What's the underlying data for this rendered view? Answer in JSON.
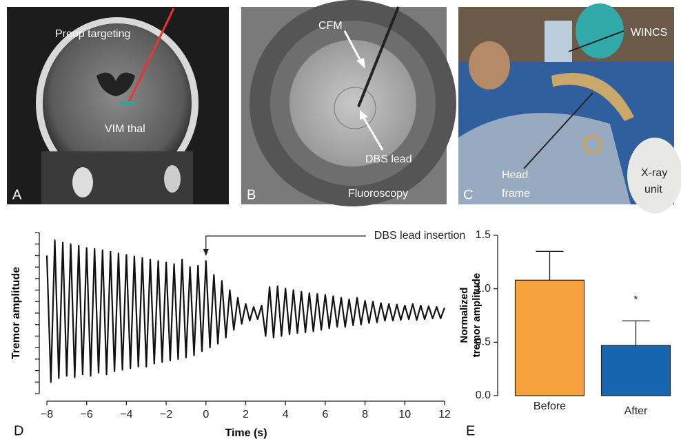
{
  "images": [
    {
      "letter": "A",
      "labels": [
        "Preop targeting",
        "VIM thal"
      ]
    },
    {
      "letter": "B",
      "labels": [
        "CFM",
        "DBS lead",
        "Fluoroscopy"
      ]
    },
    {
      "letter": "C",
      "labels": [
        "WINCS",
        "Head",
        "frame",
        "X-ray",
        "unit"
      ]
    }
  ],
  "chart_data": [
    {
      "type": "line",
      "panel_label": "D",
      "xlabel": "Time (s)",
      "ylabel": "Tremor amplitude",
      "color": "#111111",
      "annotation": {
        "text": "DBS lead insertion",
        "x": 0
      },
      "xlim": [
        -8,
        12
      ],
      "ylim": [
        -1.05,
        1.05
      ],
      "xticks": [
        {
          "value": -8,
          "label": "−8"
        },
        {
          "value": -6,
          "label": "−6"
        },
        {
          "value": -4,
          "label": "−4"
        },
        {
          "value": -2,
          "label": "−2"
        },
        0,
        2,
        4,
        6,
        8,
        10,
        12
      ],
      "yticks": [
        -1.05,
        -0.9,
        -0.75,
        -0.6,
        -0.45,
        -0.3,
        -0.15,
        0,
        0.15,
        0.3,
        0.45,
        0.6,
        0.75,
        0.9,
        1.05
      ],
      "x": [
        -8,
        -7.8,
        -7.6,
        -7.4,
        -7.2,
        -7,
        -6.8,
        -6.6,
        -6.4,
        -6.2,
        -6,
        -5.8,
        -5.6,
        -5.4,
        -5.2,
        -5,
        -4.8,
        -4.6,
        -4.4,
        -4.2,
        -4,
        -3.8,
        -3.6,
        -3.4,
        -3.2,
        -3,
        -2.8,
        -2.6,
        -2.4,
        -2.2,
        -2,
        -1.8,
        -1.6,
        -1.4,
        -1.2,
        -1,
        -0.8,
        -0.6,
        -0.4,
        -0.2,
        0,
        0.2,
        0.4,
        0.6,
        0.8,
        1,
        1.2,
        1.4,
        1.6,
        1.8,
        2,
        2.2,
        2.4,
        2.6,
        2.8,
        3,
        3.2,
        3.4,
        3.6,
        3.8,
        4,
        4.2,
        4.4,
        4.6,
        4.8,
        5,
        5.2,
        5.4,
        5.6,
        5.8,
        6,
        6.2,
        6.4,
        6.6,
        6.8,
        7,
        7.2,
        7.4,
        7.6,
        7.8,
        8,
        8.2,
        8.4,
        8.6,
        8.8,
        9,
        9.2,
        9.4,
        9.6,
        9.8,
        10,
        10.2,
        10.4,
        10.6,
        10.8,
        11,
        11.2,
        11.4,
        11.6,
        11.8,
        12
      ],
      "values": [
        0.75,
        -0.9,
        0.95,
        -0.85,
        0.92,
        -0.82,
        0.9,
        -0.84,
        0.88,
        -0.8,
        0.85,
        -0.82,
        0.84,
        -0.78,
        0.82,
        -0.8,
        0.8,
        -0.76,
        0.78,
        -0.74,
        0.76,
        -0.72,
        0.74,
        -0.7,
        0.72,
        -0.7,
        0.7,
        -0.66,
        0.68,
        -0.64,
        0.66,
        -0.62,
        0.64,
        -0.6,
        0.7,
        -0.58,
        0.6,
        -0.55,
        0.62,
        -0.5,
        0.68,
        -0.45,
        0.5,
        -0.4,
        0.42,
        -0.32,
        0.3,
        -0.22,
        0.2,
        -0.14,
        0.12,
        -0.1,
        0.08,
        -0.08,
        0.1,
        -0.3,
        0.34,
        -0.32,
        0.35,
        -0.3,
        0.32,
        -0.28,
        0.3,
        -0.26,
        0.28,
        -0.25,
        0.26,
        -0.24,
        0.25,
        -0.22,
        0.24,
        -0.2,
        0.22,
        -0.18,
        0.2,
        -0.18,
        0.18,
        -0.16,
        0.2,
        -0.15,
        0.16,
        -0.13,
        0.15,
        -0.12,
        0.13,
        -0.1,
        0.12,
        -0.1,
        0.11,
        -0.09,
        0.1,
        -0.08,
        0.12,
        -0.09,
        0.1,
        -0.08,
        0.09,
        -0.07,
        0.08,
        -0.07,
        0.07
      ]
    },
    {
      "type": "bar",
      "panel_label": "E",
      "ylabel": [
        "Normalized",
        "tremor amplitude"
      ],
      "significance": "*",
      "categories": [
        "Before",
        "After"
      ],
      "values": [
        1.08,
        0.47
      ],
      "errors": [
        0.27,
        0.23
      ],
      "colors": [
        "#f7a23c",
        "#1565b0"
      ],
      "ylim": [
        0,
        1.5
      ],
      "yticks": [
        {
          "value": 0,
          "label": "0.0"
        },
        0.5,
        {
          "value": 1,
          "label": "1.0"
        },
        1.5
      ]
    }
  ]
}
